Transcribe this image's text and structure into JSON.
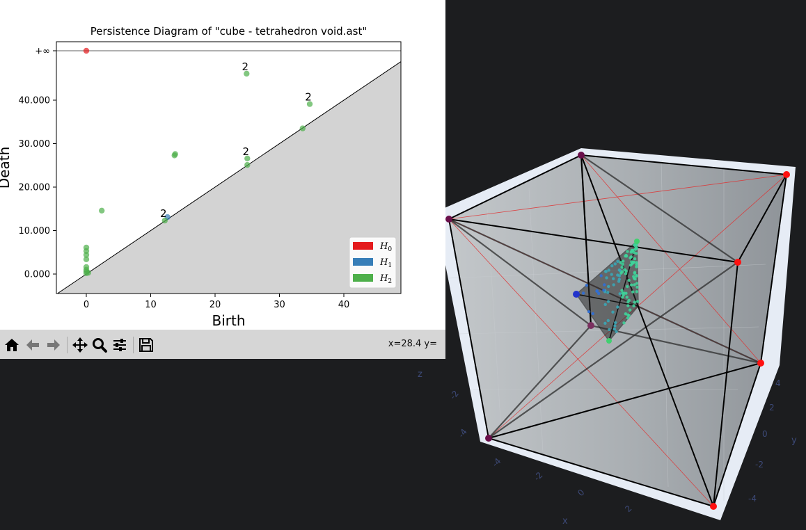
{
  "toolbar": {
    "buttons": [
      "home-icon",
      "back-arrow-icon",
      "forward-arrow-icon",
      "pan-icon",
      "zoom-icon",
      "configure-subplots-icon",
      "save-icon"
    ],
    "coordinate_text": "x=28.4 y="
  },
  "scene3d": {
    "axis_labels": {
      "x": "x",
      "y": "y",
      "z": "z"
    },
    "x_ticks": [
      "-4",
      "-2",
      "0",
      "2"
    ],
    "y_ticks": [
      "4",
      "2",
      "0",
      "-2",
      "-4"
    ],
    "z_ticks": [
      "0",
      "-2",
      "-4"
    ]
  },
  "chart_data": {
    "type": "scatter",
    "title": "Persistence Diagram of \"cube - tetrahedron void.ast\"",
    "xlabel": "Birth",
    "ylabel": "Death",
    "xlim": [
      -4.6,
      49
    ],
    "ylim": [
      -4.5,
      42
    ],
    "infinity_label": "+∞",
    "x_ticks": [
      "0",
      "10",
      "20",
      "30",
      "40"
    ],
    "y_ticks": [
      "0.000",
      "10.000",
      "20.000",
      "30.000",
      "40.000"
    ],
    "legend": {
      "placement": "lower-right",
      "entries": [
        {
          "label": "H",
          "sub": "0",
          "color": "#e41a1c"
        },
        {
          "label": "H",
          "sub": "1",
          "color": "#377eb8"
        },
        {
          "label": "H",
          "sub": "2",
          "color": "#4daf4a"
        }
      ]
    },
    "series": [
      {
        "name": "H0",
        "color": "#e41a1c",
        "points": [
          {
            "birth": 0,
            "death": "inf"
          }
        ]
      },
      {
        "name": "H1",
        "color": "#377eb8",
        "points": [
          {
            "birth": 12.6,
            "death": 13.1
          }
        ]
      },
      {
        "name": "H2",
        "color": "#4daf4a",
        "points": [
          {
            "birth": 24.9,
            "death": 46.1,
            "count": "2"
          },
          {
            "birth": 34.7,
            "death": 39.1,
            "count": "2"
          },
          {
            "birth": 33.6,
            "death": 33.5
          },
          {
            "birth": 13.8,
            "death": 27.6
          },
          {
            "birth": 13.7,
            "death": 27.3
          },
          {
            "birth": 25.0,
            "death": 26.6,
            "count": "2"
          },
          {
            "birth": 25.0,
            "death": 25.1
          },
          {
            "birth": 2.4,
            "death": 14.6
          },
          {
            "birth": 12.2,
            "death": 12.3,
            "count": "2"
          },
          {
            "birth": 0,
            "death": 6.1
          },
          {
            "birth": 0,
            "death": 5.3
          },
          {
            "birth": 0,
            "death": 4.4
          },
          {
            "birth": 0,
            "death": 3.4
          },
          {
            "birth": 0,
            "death": 1.6
          },
          {
            "birth": 0,
            "death": 1.0
          },
          {
            "birth": 0,
            "death": 0.6
          },
          {
            "birth": 0,
            "death": 0.2
          },
          {
            "birth": 0.3,
            "death": 0.3
          }
        ]
      }
    ]
  }
}
